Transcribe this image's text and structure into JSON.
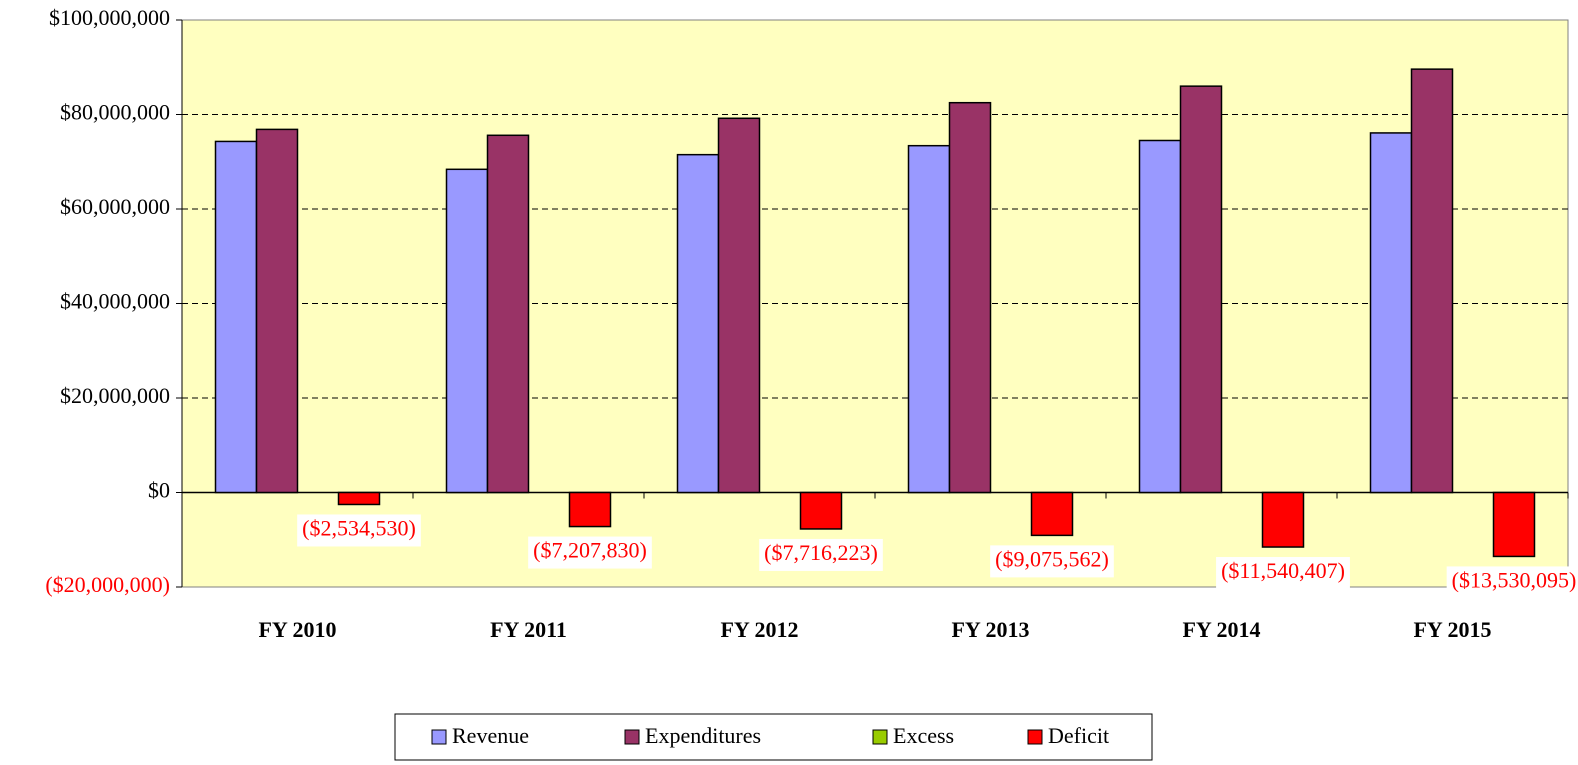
{
  "chart_data": {
    "type": "bar",
    "categories": [
      "FY 2010",
      "FY 2011",
      "FY 2012",
      "FY 2013",
      "FY 2014",
      "FY 2015"
    ],
    "series": [
      {
        "name": "Revenue",
        "color": "#9999ff",
        "values": [
          74300000,
          68400000,
          71500000,
          73400000,
          74500000,
          76100000
        ]
      },
      {
        "name": "Expenditures",
        "color": "#993366",
        "values": [
          76850000,
          75600000,
          79200000,
          82500000,
          86000000,
          89600000
        ]
      },
      {
        "name": "Excess",
        "color": "#99cc00",
        "values": [
          0,
          0,
          0,
          0,
          0,
          0
        ]
      },
      {
        "name": "Deficit",
        "color": "#ff0000",
        "values": [
          -2534530,
          -7207830,
          -7716223,
          -9075562,
          -11540407,
          -13530095
        ],
        "value_labels": [
          "($2,534,530)",
          "($7,207,830)",
          "($7,716,223)",
          "($9,075,562)",
          "($11,540,407)",
          "($13,530,095)"
        ]
      }
    ],
    "ylim": [
      -20000000,
      100000000
    ],
    "yticks": [
      {
        "value": -20000000,
        "label": "($20,000,000)"
      },
      {
        "value": 0,
        "label": "$0"
      },
      {
        "value": 20000000,
        "label": "$20,000,000"
      },
      {
        "value": 40000000,
        "label": "$40,000,000"
      },
      {
        "value": 60000000,
        "label": "$60,000,000"
      },
      {
        "value": 80000000,
        "label": "$80,000,000"
      },
      {
        "value": 100000000,
        "label": "$100,000,000"
      }
    ],
    "grid": true,
    "negative_color": "#ff0000",
    "plot_background": "#ffffc0",
    "legend": "bottom"
  }
}
